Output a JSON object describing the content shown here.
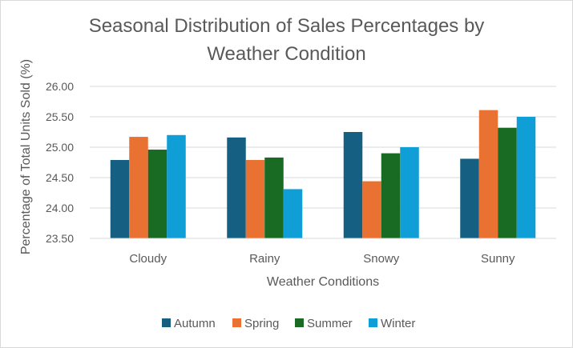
{
  "chart_data": {
    "type": "bar",
    "title_line1": "Seasonal Distribution of Sales Percentages by",
    "title_line2": "Weather Condition",
    "xlabel": "Weather Conditions",
    "ylabel": "Percentage of Total Units Sold (%)",
    "ylim": [
      23.5,
      26.0
    ],
    "yticks": [
      "23.50",
      "24.00",
      "24.50",
      "25.00",
      "25.50",
      "26.00"
    ],
    "categories": [
      "Cloudy",
      "Rainy",
      "Snowy",
      "Sunny"
    ],
    "series": [
      {
        "name": "Autumn",
        "color": "#156082",
        "values": [
          24.79,
          25.16,
          25.25,
          24.81
        ]
      },
      {
        "name": "Spring",
        "color": "#E97132",
        "values": [
          25.17,
          24.79,
          24.44,
          25.61
        ]
      },
      {
        "name": "Summer",
        "color": "#196B24",
        "values": [
          24.96,
          24.83,
          24.9,
          25.32
        ]
      },
      {
        "name": "Winter",
        "color": "#0F9ED5",
        "values": [
          25.2,
          24.31,
          25.0,
          25.5
        ]
      }
    ],
    "grid": true,
    "legend_position": "bottom"
  }
}
